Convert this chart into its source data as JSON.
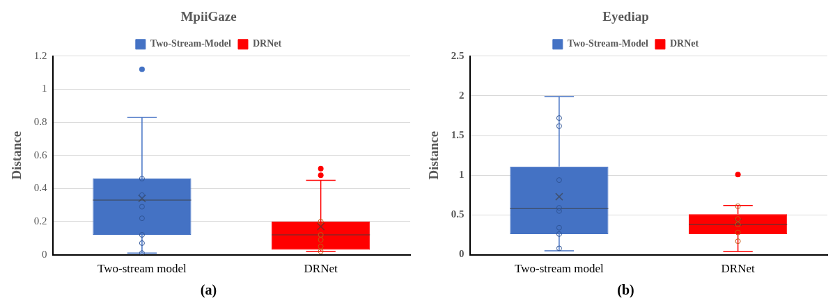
{
  "chart_data": [
    {
      "type": "box",
      "title": "MpiiGaze",
      "ylabel": "Distance",
      "categories": [
        "Two-stream model",
        "DRNet"
      ],
      "ylim": [
        0,
        1.2
      ],
      "yticks": [
        0,
        0.2,
        0.4,
        0.6,
        0.8,
        1,
        1.2
      ],
      "grid": "y",
      "legend": "top",
      "marker": "circle",
      "annotations": [
        "(a)"
      ],
      "series": [
        {
          "name": "Two-Stream-Model",
          "type": "box",
          "color": "#4472c4",
          "boxes": [
            {
              "low": 0.01,
              "q1": 0.12,
              "median": 0.33,
              "q3": 0.46,
              "high": 0.83,
              "mean": 0.34,
              "outliers": [
                1.12
              ]
            },
            null
          ]
        },
        {
          "name": "DRNet",
          "type": "box",
          "color": "#ff0000",
          "boxes": [
            null,
            {
              "low": 0.02,
              "q1": 0.03,
              "median": 0.12,
              "q3": 0.2,
              "high": 0.45,
              "mean": 0.17,
              "outliers": [
                0.52,
                0.48
              ]
            }
          ]
        },
        {
          "type": "scatter",
          "color": "#2f5597",
          "x": [
            "Two-stream model",
            "Two-stream model",
            "Two-stream model",
            "Two-stream model",
            "Two-stream model",
            "Two-stream model",
            "Two-stream model"
          ],
          "values": [
            0.46,
            0.36,
            0.29,
            0.22,
            0.12,
            0.07,
            0.01
          ]
        },
        {
          "type": "scatter",
          "color": "#c55a11",
          "x": [
            "DRNet",
            "DRNet",
            "DRNet",
            "DRNet",
            "DRNet"
          ],
          "values": [
            0.2,
            0.12,
            0.09,
            0.05,
            0.02
          ]
        }
      ]
    },
    {
      "type": "box",
      "title": "Eyediap",
      "ylabel": "Distance",
      "categories": [
        "Two-stream model",
        "DRNet"
      ],
      "ylim": [
        0,
        2.5
      ],
      "yticks": [
        0,
        0.5,
        1,
        1.5,
        2,
        2.5
      ],
      "grid": "y",
      "legend": "top",
      "marker": "circle",
      "annotations": [
        "(b)"
      ],
      "series": [
        {
          "name": "Two-Stream-Model",
          "type": "box",
          "color": "#4472c4",
          "boxes": [
            {
              "low": 0.05,
              "q1": 0.26,
              "median": 0.58,
              "q3": 1.11,
              "high": 1.99,
              "mean": 0.73
            },
            null
          ]
        },
        {
          "name": "DRNet",
          "type": "box",
          "color": "#ff0000",
          "boxes": [
            null,
            {
              "low": 0.04,
              "q1": 0.26,
              "median": 0.38,
              "q3": 0.51,
              "high": 0.62,
              "mean": 0.41,
              "outliers": [
                1.01
              ]
            }
          ]
        },
        {
          "type": "scatter",
          "color": "#2f5597",
          "x": [
            "Two-stream model",
            "Two-stream model",
            "Two-stream model",
            "Two-stream model",
            "Two-stream model",
            "Two-stream model",
            "Two-stream model",
            "Two-stream model"
          ],
          "values": [
            1.72,
            1.62,
            0.94,
            0.59,
            0.55,
            0.34,
            0.26,
            0.08
          ]
        },
        {
          "type": "scatter",
          "color": "#c55a11",
          "x": [
            "DRNet",
            "DRNet",
            "DRNet",
            "DRNet",
            "DRNet"
          ],
          "values": [
            0.61,
            0.45,
            0.38,
            0.28,
            0.17
          ]
        }
      ]
    }
  ]
}
